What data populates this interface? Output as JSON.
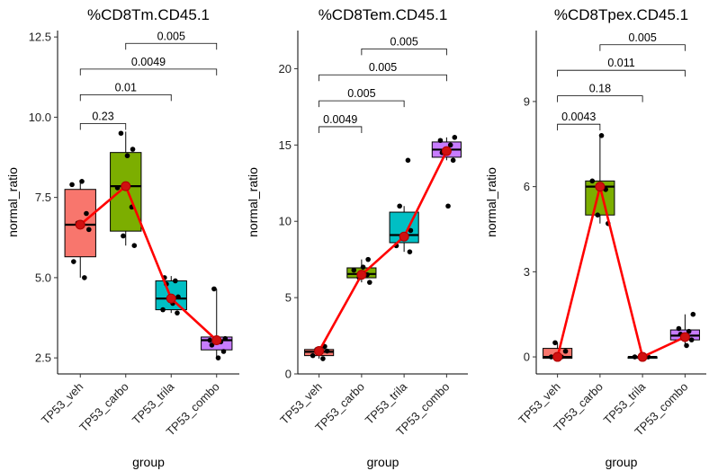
{
  "chart_data": [
    {
      "type": "box",
      "title": "%CD8Tm.CD45.1",
      "xlabel": "group",
      "ylabel": "normal_ratio",
      "categories": [
        "TP53_veh",
        "TP53_carbo",
        "TP53_trila",
        "TP53_combo"
      ],
      "ylim": [
        2.0,
        12.7
      ],
      "yticks": [
        2.5,
        5.0,
        7.5,
        10.0,
        12.5
      ],
      "ytick_labels": [
        "2.5",
        "5.0",
        "7.5",
        "10.0",
        "12.5"
      ],
      "boxes": [
        {
          "q1": 5.65,
          "median": 6.65,
          "q3": 7.75,
          "lo": 5.0,
          "hi": 8.05
        },
        {
          "q1": 6.45,
          "median": 7.85,
          "q3": 8.9,
          "lo": 6.0,
          "hi": 9.55
        },
        {
          "q1": 4.0,
          "median": 4.35,
          "q3": 4.9,
          "lo": 3.9,
          "hi": 5.05
        },
        {
          "q1": 2.75,
          "median": 3.05,
          "q3": 3.15,
          "lo": 2.5,
          "hi": 4.65
        }
      ],
      "points": [
        [
          5.0,
          5.5,
          6.5,
          6.7,
          7.0,
          7.9,
          8.0
        ],
        [
          6.0,
          6.3,
          7.2,
          7.8,
          8.8,
          9.0,
          9.5
        ],
        [
          3.9,
          4.0,
          4.2,
          4.4,
          4.8,
          4.9,
          5.0
        ],
        [
          2.5,
          2.7,
          2.9,
          3.0,
          3.05,
          3.1,
          4.65
        ]
      ],
      "means": [
        6.65,
        7.85,
        4.35,
        3.05
      ],
      "comparisons": [
        {
          "from": 0,
          "to": 1,
          "label": "0.23",
          "y": 9.8
        },
        {
          "from": 0,
          "to": 2,
          "label": "0.01",
          "y": 10.7
        },
        {
          "from": 0,
          "to": 3,
          "label": "0.0049",
          "y": 11.5
        },
        {
          "from": 1,
          "to": 3,
          "label": "0.005",
          "y": 12.3
        }
      ],
      "fills": [
        "#F8766D",
        "#7CAE00",
        "#00BFC4",
        "#C77CFF"
      ],
      "mean_color": "#ff0000"
    },
    {
      "type": "box",
      "title": "%CD8Tem.CD45.1",
      "xlabel": "group",
      "ylabel": "normal_ratio",
      "categories": [
        "TP53_veh",
        "TP53_carbo",
        "TP53_trila",
        "TP53_combo"
      ],
      "ylim": [
        0,
        22.5
      ],
      "yticks": [
        0,
        5,
        10,
        15,
        20
      ],
      "ytick_labels": [
        "0",
        "5",
        "10",
        "15",
        "20"
      ],
      "boxes": [
        {
          "q1": 1.2,
          "median": 1.45,
          "q3": 1.6,
          "lo": 1.0,
          "hi": 1.8
        },
        {
          "q1": 6.3,
          "median": 6.55,
          "q3": 6.95,
          "lo": 6.0,
          "hi": 7.5
        },
        {
          "q1": 8.6,
          "median": 9.1,
          "q3": 10.6,
          "lo": 8.0,
          "hi": 11.0
        },
        {
          "q1": 14.2,
          "median": 14.7,
          "q3": 15.2,
          "lo": 14.0,
          "hi": 15.5
        }
      ],
      "points": [
        [
          1.0,
          1.2,
          1.5,
          1.6,
          1.8
        ],
        [
          6.0,
          6.3,
          6.5,
          6.8,
          7.0,
          7.5
        ],
        [
          8.0,
          8.4,
          9.0,
          9.4,
          11.0,
          14.0
        ],
        [
          11.0,
          14.0,
          14.5,
          15.0,
          15.3,
          15.5
        ]
      ],
      "means": [
        1.5,
        6.5,
        9.0,
        14.6
      ],
      "comparisons": [
        {
          "from": 0,
          "to": 1,
          "label": "0.0049",
          "y": 16.2
        },
        {
          "from": 0,
          "to": 2,
          "label": "0.005",
          "y": 17.9
        },
        {
          "from": 0,
          "to": 3,
          "label": "0.005",
          "y": 19.6
        },
        {
          "from": 1,
          "to": 3,
          "label": "0.005",
          "y": 21.3
        }
      ],
      "fills": [
        "#F8766D",
        "#7CAE00",
        "#00BFC4",
        "#C77CFF"
      ],
      "mean_color": "#ff0000"
    },
    {
      "type": "box",
      "title": "%CD8Tpex.CD45.1",
      "xlabel": "group",
      "ylabel": "normal_ratio",
      "categories": [
        "TP53_veh",
        "TP53_carbo",
        "TP53_trila",
        "TP53_combo"
      ],
      "ylim": [
        -0.6,
        11.5
      ],
      "yticks": [
        0,
        3,
        6,
        9
      ],
      "ytick_labels": [
        "0",
        "3",
        "6",
        "9"
      ],
      "boxes": [
        {
          "q1": -0.05,
          "median": 0.0,
          "q3": 0.3,
          "lo": -0.05,
          "hi": 0.5
        },
        {
          "q1": 5.0,
          "median": 6.0,
          "q3": 6.2,
          "lo": 4.7,
          "hi": 7.8
        },
        {
          "q1": -0.05,
          "median": 0.0,
          "q3": 0.0,
          "lo": -0.05,
          "hi": 0.0
        },
        {
          "q1": 0.6,
          "median": 0.75,
          "q3": 0.95,
          "lo": 0.4,
          "hi": 1.5
        }
      ],
      "points": [
        [
          0.0,
          0.0,
          0.2,
          0.5
        ],
        [
          4.7,
          5.0,
          5.9,
          6.2,
          7.8
        ],
        [
          0.0,
          0.0
        ],
        [
          0.4,
          0.6,
          0.8,
          0.9,
          1.0,
          1.5
        ]
      ],
      "means": [
        0.0,
        6.0,
        0.0,
        0.7
      ],
      "comparisons": [
        {
          "from": 0,
          "to": 1,
          "label": "0.0043",
          "y": 8.2
        },
        {
          "from": 0,
          "to": 2,
          "label": "0.18",
          "y": 9.2
        },
        {
          "from": 0,
          "to": 3,
          "label": "0.011",
          "y": 10.1
        },
        {
          "from": 1,
          "to": 3,
          "label": "0.005",
          "y": 11.0
        }
      ],
      "fills": [
        "#F8766D",
        "#7CAE00",
        "#00BFC4",
        "#C77CFF"
      ],
      "mean_color": "#ff0000"
    }
  ]
}
